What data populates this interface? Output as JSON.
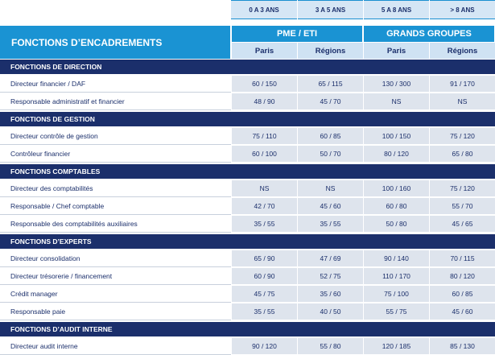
{
  "header": {
    "experience": [
      "0 A 3 ANS",
      "3 A 5 ANS",
      "5 A 8 ANS",
      "> 8 ANS"
    ],
    "title": "FONCTIONS D’ENCADREMENTS",
    "groups": [
      "PME / ETI",
      "GRANDS GROUPES"
    ],
    "cities": [
      "Paris",
      "Régions",
      "Paris",
      "Régions"
    ]
  },
  "sections": [
    {
      "title": "FONCTIONS DE DIRECTION",
      "rows": [
        {
          "label": "Directeur financier / DAF",
          "values": [
            "60 / 150",
            "65 / 115",
            "130 / 300",
            "91 / 170"
          ]
        },
        {
          "label": "Responsable administratif et financier",
          "values": [
            "48 / 90",
            "45 / 70",
            "NS",
            "NS"
          ]
        }
      ]
    },
    {
      "title": "FONCTIONS DE GESTION",
      "rows": [
        {
          "label": "Directeur contrôle de gestion",
          "values": [
            "75 / 110",
            "60 / 85",
            "100 / 150",
            "75 / 120"
          ]
        },
        {
          "label": "Contrôleur financier",
          "values": [
            "60 / 100",
            "50 / 70",
            "80 / 120",
            "65 / 80"
          ]
        }
      ]
    },
    {
      "title": "FONCTIONS COMPTABLES",
      "rows": [
        {
          "label": "Directeur des comptabilités",
          "values": [
            "NS",
            "NS",
            "100 / 160",
            "75 / 120"
          ]
        },
        {
          "label": "Responsable / Chef comptable",
          "values": [
            "42 / 70",
            "45 / 60",
            "60 / 80",
            "55 / 70"
          ]
        },
        {
          "label": "Responsable des comptabilités auxiliaires",
          "values": [
            "35 / 55",
            "35 / 55",
            "50 / 80",
            "45 / 65"
          ]
        }
      ]
    },
    {
      "title": "FONCTIONS D’EXPERTS",
      "rows": [
        {
          "label": "Directeur consolidation",
          "values": [
            "65 / 90",
            "47 / 69",
            "90 / 140",
            "70 / 115"
          ]
        },
        {
          "label": "Directeur trésorerie / financement",
          "values": [
            "60 / 90",
            "52 / 75",
            "110 / 170",
            "80 / 120"
          ]
        },
        {
          "label": "Crédit manager",
          "values": [
            "45 / 75",
            "35 / 60",
            "75 / 100",
            "60 / 85"
          ]
        },
        {
          "label": "Responsable paie",
          "values": [
            "35 / 55",
            "40 / 50",
            "55 / 75",
            "45 / 60"
          ]
        }
      ]
    },
    {
      "title": "FONCTIONS D’AUDIT INTERNE",
      "rows": [
        {
          "label": "Directeur audit interne",
          "values": [
            "90 / 120",
            "55 / 80",
            "120 / 185",
            "85 / 130"
          ]
        }
      ]
    }
  ]
}
